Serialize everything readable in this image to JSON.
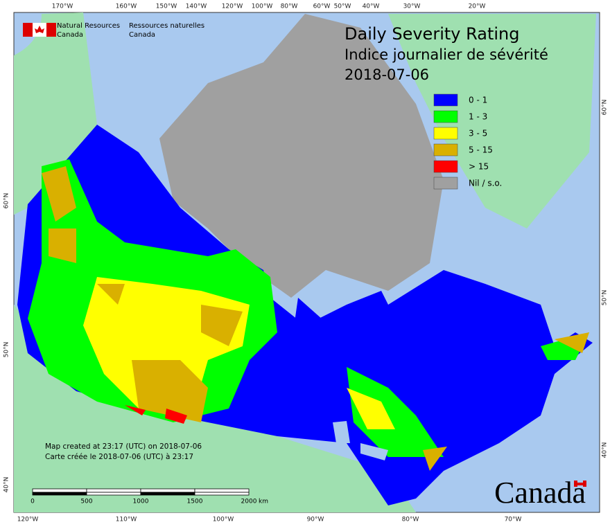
{
  "header": {
    "title": "Daily Severity Rating",
    "subtitle": "Indice journalier de sévérité",
    "date": "2018-07-06"
  },
  "agency": {
    "en": [
      "Natural Resources",
      "Canada"
    ],
    "fr": [
      "Ressources naturelles",
      "Canada"
    ]
  },
  "legend": [
    {
      "label": "0 - 1",
      "color": "#0000ff"
    },
    {
      "label": "1 - 3",
      "color": "#00ff00"
    },
    {
      "label": "3 - 5",
      "color": "#ffff00"
    },
    {
      "label": "5 - 15",
      "color": "#d9b000"
    },
    {
      "label": "> 15",
      "color": "#ff0000"
    },
    {
      "label": "Nil / s.o.",
      "color": "#a0a0a0"
    }
  ],
  "graticule": {
    "top": [
      "170°W",
      "160°W",
      "150°W",
      "140°W",
      "120°W",
      "100°W",
      "80°W",
      "60°W",
      "50°W",
      "40°W",
      "30°W",
      "20°W"
    ],
    "bottom": [
      "120°W",
      "110°W",
      "100°W",
      "90°W",
      "80°W",
      "70°W"
    ],
    "left": [
      "60°N",
      "50°N",
      "40°N"
    ],
    "right": [
      "60°N",
      "50°N",
      "40°N"
    ]
  },
  "credits": [
    "Map created at 23:17 (UTC) on 2018-07-06",
    "Carte créée le 2018-07-06 (UTC) à 23:17"
  ],
  "scale_bar": {
    "labels": [
      "0",
      "500",
      "1000",
      "1500",
      "2000"
    ],
    "unit": "km"
  },
  "wordmark": "Canada"
}
